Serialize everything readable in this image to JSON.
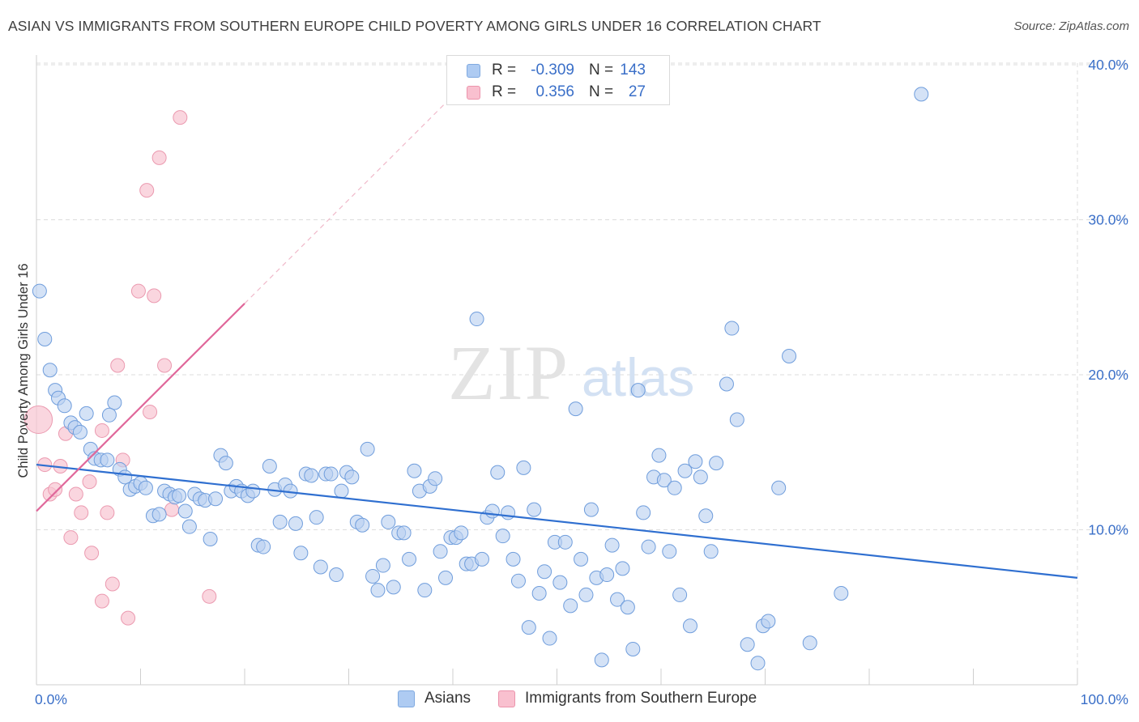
{
  "title": "ASIAN VS IMMIGRANTS FROM SOUTHERN EUROPE CHILD POVERTY AMONG GIRLS UNDER 16 CORRELATION CHART",
  "source": "Source: ZipAtlas.com",
  "watermark": {
    "zip": "ZIP",
    "atlas": "atlas"
  },
  "legend": {
    "rows": [
      {
        "name": "Asians",
        "r_label": "R =",
        "r_value": "-0.309",
        "n_label": "N =",
        "n_value": "143",
        "color": "#aecbf2",
        "border": "#7fa9e0"
      },
      {
        "name": "Immigrants from Southern Europe",
        "r_label": "R =",
        "r_value": "0.356",
        "n_label": "N =",
        "n_value": "27",
        "color": "#f9c0cf",
        "border": "#ec94ac"
      }
    ]
  },
  "colors": {
    "asian_fill": "#b9d0f0",
    "asian_stroke": "#6f9ddc",
    "asian_line": "#2f6fd0",
    "south_fill": "#f8c4d2",
    "south_stroke": "#eb9ab0",
    "south_line": "#e0679a",
    "grid": "#dddddd",
    "tick_label": "#3a6fc8"
  },
  "chart_data": {
    "type": "scatter",
    "title": "ASIAN VS IMMIGRANTS FROM SOUTHERN EUROPE CHILD POVERTY AMONG GIRLS UNDER 16 CORRELATION CHART",
    "xlabel": "",
    "ylabel": "Child Poverty Among Girls Under 16",
    "xlim": [
      0,
      100
    ],
    "ylim": [
      0,
      42
    ],
    "x_tick_labels": [
      "0.0%",
      "100.0%"
    ],
    "y_ticks": [
      10,
      20,
      30,
      40
    ],
    "y_tick_labels": [
      "10.0%",
      "20.0%",
      "30.0%",
      "40.0%"
    ],
    "grid": true,
    "series": [
      {
        "name": "Asians",
        "r": -0.309,
        "n": 143,
        "trend": {
          "x0": 0,
          "y0": 14.2,
          "x1": 100,
          "y1": 6.9
        },
        "points": [
          [
            0.3,
            25.4
          ],
          [
            0.8,
            22.3
          ],
          [
            1.3,
            20.3
          ],
          [
            1.8,
            19.0
          ],
          [
            2.1,
            18.5
          ],
          [
            2.7,
            18.0
          ],
          [
            3.3,
            16.9
          ],
          [
            3.7,
            16.6
          ],
          [
            4.2,
            16.3
          ],
          [
            4.8,
            17.5
          ],
          [
            5.2,
            15.2
          ],
          [
            5.6,
            14.6
          ],
          [
            6.2,
            14.5
          ],
          [
            6.8,
            14.5
          ],
          [
            7.5,
            18.2
          ],
          [
            7.0,
            17.4
          ],
          [
            8.0,
            13.9
          ],
          [
            8.5,
            13.4
          ],
          [
            9.0,
            12.6
          ],
          [
            9.5,
            12.8
          ],
          [
            10.0,
            13.0
          ],
          [
            10.5,
            12.7
          ],
          [
            11.2,
            10.9
          ],
          [
            11.8,
            11.0
          ],
          [
            12.3,
            12.5
          ],
          [
            12.8,
            12.3
          ],
          [
            13.3,
            12.1
          ],
          [
            13.7,
            12.2
          ],
          [
            14.3,
            11.2
          ],
          [
            14.7,
            10.2
          ],
          [
            15.2,
            12.3
          ],
          [
            15.7,
            12.0
          ],
          [
            16.2,
            11.9
          ],
          [
            16.7,
            9.4
          ],
          [
            17.2,
            12.0
          ],
          [
            17.7,
            14.8
          ],
          [
            18.2,
            14.3
          ],
          [
            18.7,
            12.5
          ],
          [
            19.2,
            12.8
          ],
          [
            19.7,
            12.5
          ],
          [
            20.3,
            12.2
          ],
          [
            20.8,
            12.5
          ],
          [
            21.3,
            9.0
          ],
          [
            21.8,
            8.9
          ],
          [
            22.4,
            14.1
          ],
          [
            22.9,
            12.6
          ],
          [
            23.4,
            10.5
          ],
          [
            23.9,
            12.9
          ],
          [
            24.4,
            12.5
          ],
          [
            24.9,
            10.4
          ],
          [
            25.4,
            8.5
          ],
          [
            25.9,
            13.6
          ],
          [
            26.4,
            13.5
          ],
          [
            26.9,
            10.8
          ],
          [
            27.3,
            7.6
          ],
          [
            27.8,
            13.6
          ],
          [
            28.3,
            13.6
          ],
          [
            28.8,
            7.1
          ],
          [
            29.3,
            12.5
          ],
          [
            29.8,
            13.7
          ],
          [
            30.3,
            13.4
          ],
          [
            30.8,
            10.5
          ],
          [
            31.3,
            10.3
          ],
          [
            31.8,
            15.2
          ],
          [
            32.3,
            7.0
          ],
          [
            32.8,
            6.1
          ],
          [
            33.3,
            7.7
          ],
          [
            33.8,
            10.5
          ],
          [
            34.3,
            6.3
          ],
          [
            34.8,
            9.8
          ],
          [
            35.3,
            9.8
          ],
          [
            35.8,
            8.1
          ],
          [
            36.3,
            13.8
          ],
          [
            36.8,
            12.5
          ],
          [
            37.3,
            6.1
          ],
          [
            37.8,
            12.8
          ],
          [
            38.3,
            13.3
          ],
          [
            38.8,
            8.6
          ],
          [
            39.3,
            6.9
          ],
          [
            39.8,
            9.5
          ],
          [
            40.3,
            9.5
          ],
          [
            40.8,
            9.8
          ],
          [
            41.3,
            7.8
          ],
          [
            41.8,
            7.8
          ],
          [
            42.3,
            23.6
          ],
          [
            42.8,
            8.1
          ],
          [
            43.3,
            10.8
          ],
          [
            43.8,
            11.2
          ],
          [
            44.3,
            13.7
          ],
          [
            44.8,
            9.6
          ],
          [
            45.3,
            11.1
          ],
          [
            45.8,
            8.1
          ],
          [
            46.3,
            6.7
          ],
          [
            46.8,
            14.0
          ],
          [
            47.3,
            3.7
          ],
          [
            47.8,
            11.3
          ],
          [
            48.3,
            5.9
          ],
          [
            48.8,
            7.3
          ],
          [
            49.3,
            3.0
          ],
          [
            49.8,
            9.2
          ],
          [
            50.3,
            6.6
          ],
          [
            50.8,
            9.2
          ],
          [
            51.3,
            5.1
          ],
          [
            51.8,
            17.8
          ],
          [
            52.3,
            8.1
          ],
          [
            52.8,
            5.8
          ],
          [
            53.3,
            11.3
          ],
          [
            53.8,
            6.9
          ],
          [
            54.3,
            1.6
          ],
          [
            54.8,
            7.1
          ],
          [
            55.3,
            9.0
          ],
          [
            55.8,
            5.5
          ],
          [
            56.3,
            7.5
          ],
          [
            56.8,
            5.0
          ],
          [
            57.3,
            2.3
          ],
          [
            57.8,
            19.0
          ],
          [
            58.3,
            11.1
          ],
          [
            58.8,
            8.9
          ],
          [
            59.3,
            13.4
          ],
          [
            59.8,
            14.8
          ],
          [
            60.3,
            13.2
          ],
          [
            60.8,
            8.6
          ],
          [
            61.3,
            12.7
          ],
          [
            61.8,
            5.8
          ],
          [
            62.3,
            13.8
          ],
          [
            62.8,
            3.8
          ],
          [
            63.3,
            14.4
          ],
          [
            63.8,
            13.4
          ],
          [
            64.3,
            10.9
          ],
          [
            64.8,
            8.6
          ],
          [
            65.3,
            14.3
          ],
          [
            66.3,
            19.4
          ],
          [
            66.8,
            23.0
          ],
          [
            67.3,
            17.1
          ],
          [
            68.3,
            2.6
          ],
          [
            69.3,
            1.4
          ],
          [
            69.8,
            3.8
          ],
          [
            70.3,
            4.1
          ],
          [
            71.3,
            12.7
          ],
          [
            72.3,
            21.2
          ],
          [
            74.3,
            2.7
          ],
          [
            77.3,
            5.9
          ],
          [
            85.0,
            38.1
          ]
        ]
      },
      {
        "name": "Immigrants from Southern Europe",
        "r": 0.356,
        "n": 27,
        "trend": {
          "x0": 0,
          "y0": 11.2,
          "x1": 20,
          "y1": 24.6
        },
        "trend_extension": {
          "x0": 20,
          "y0": 24.6,
          "x1": 40,
          "y1": 38.0
        },
        "points": [
          [
            0.2,
            17.1
          ],
          [
            0.8,
            14.2
          ],
          [
            1.3,
            12.3
          ],
          [
            1.8,
            12.6
          ],
          [
            2.3,
            14.1
          ],
          [
            2.8,
            16.2
          ],
          [
            3.3,
            9.5
          ],
          [
            3.8,
            12.3
          ],
          [
            4.3,
            11.1
          ],
          [
            5.1,
            13.1
          ],
          [
            5.3,
            8.5
          ],
          [
            6.3,
            5.4
          ],
          [
            6.3,
            16.4
          ],
          [
            6.8,
            11.1
          ],
          [
            7.3,
            6.5
          ],
          [
            7.8,
            20.6
          ],
          [
            8.3,
            14.5
          ],
          [
            8.8,
            4.3
          ],
          [
            9.8,
            25.4
          ],
          [
            10.6,
            31.9
          ],
          [
            10.9,
            17.6
          ],
          [
            11.3,
            25.1
          ],
          [
            11.8,
            34.0
          ],
          [
            12.3,
            20.6
          ],
          [
            13.0,
            11.3
          ],
          [
            13.8,
            36.6
          ],
          [
            16.6,
            5.7
          ]
        ]
      }
    ]
  }
}
